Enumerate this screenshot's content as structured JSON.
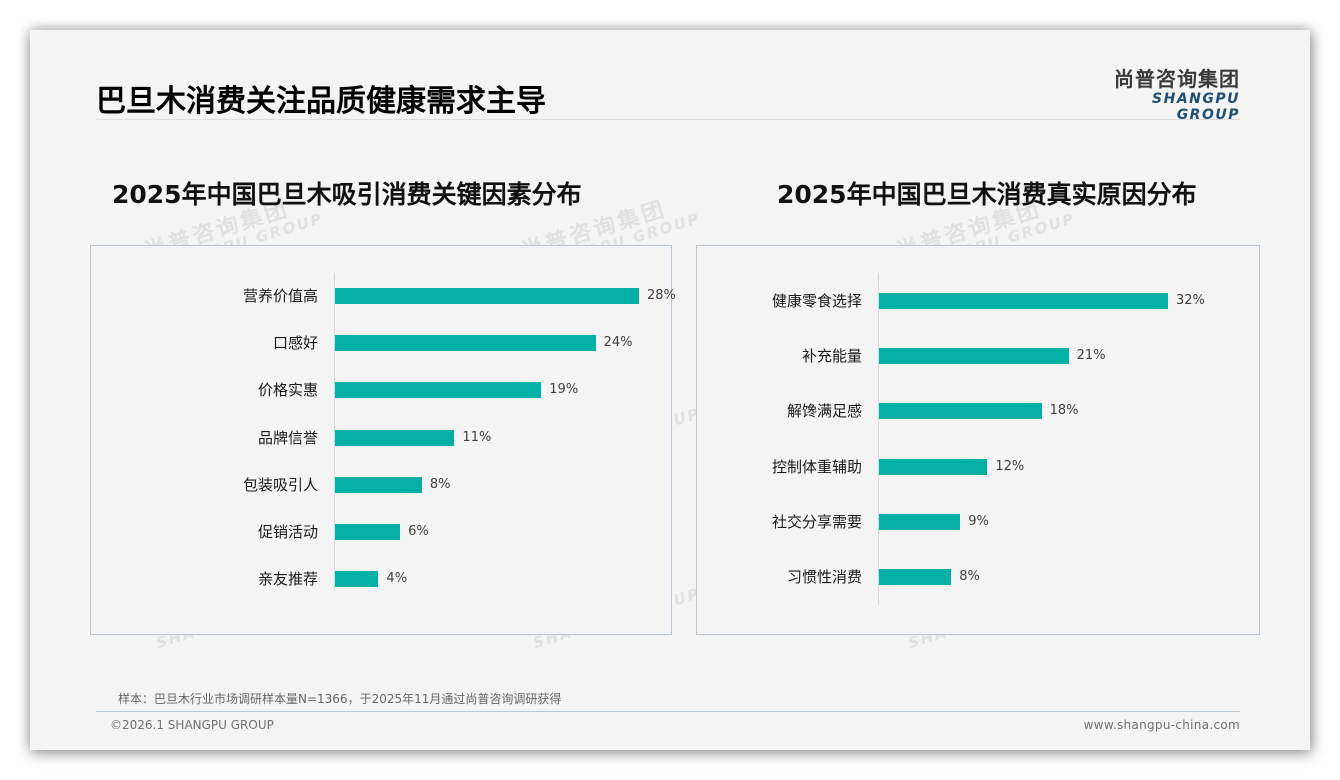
{
  "page": {
    "title": "巴旦木消费关注品质健康需求主导",
    "logo_cn": "尚普咨询集团",
    "logo_en": "SHANGPU GROUP",
    "watermark_cn": "尚普咨询集团",
    "watermark_en": "SHANGPU GROUP",
    "note": "样本：巴旦木行业市场调研样本量N=1366，于2025年11月通过尚普咨询调研获得",
    "copyright": "©2026.1 SHANGPU GROUP",
    "website": "www.shangpu-china.com"
  },
  "colors": {
    "bar": "#03b0a5",
    "panel_border": "#b9c6d4",
    "logo_en": "#1f4e79"
  },
  "chart_data": [
    {
      "type": "bar",
      "orientation": "horizontal",
      "title": "2025年中国巴旦木吸引消费关键因素分布",
      "categories": [
        "营养价值高",
        "口感好",
        "价格实惠",
        "品牌信誉",
        "包装吸引人",
        "促销活动",
        "亲友推荐"
      ],
      "values": [
        28,
        24,
        19,
        11,
        8,
        6,
        4
      ],
      "labels": [
        "28%",
        "24%",
        "19%",
        "11%",
        "8%",
        "6%",
        "4%"
      ],
      "unit": "%",
      "xlabel": "",
      "ylabel": "",
      "xlim": [
        0,
        28
      ],
      "grid": false,
      "legend": null
    },
    {
      "type": "bar",
      "orientation": "horizontal",
      "title": "2025年中国巴旦木消费真实原因分布",
      "categories": [
        "健康零食选择",
        "补充能量",
        "解馋满足感",
        "控制体重辅助",
        "社交分享需要",
        "习惯性消费"
      ],
      "values": [
        32,
        21,
        18,
        12,
        9,
        8
      ],
      "labels": [
        "32%",
        "21%",
        "18%",
        "12%",
        "9%",
        "8%"
      ],
      "unit": "%",
      "xlabel": "",
      "ylabel": "",
      "xlim": [
        0,
        32
      ],
      "grid": false,
      "legend": null
    }
  ]
}
